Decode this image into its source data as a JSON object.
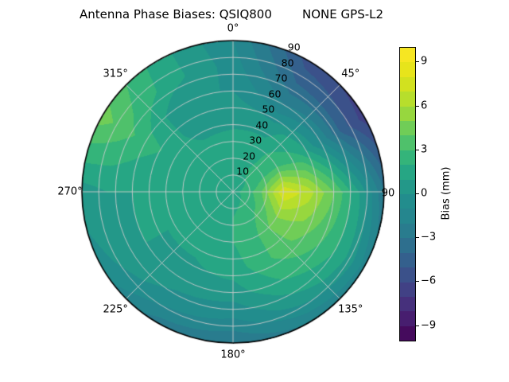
{
  "colors": {
    "background": "#ffffff",
    "grid_line": "#cccccc",
    "circle_outline": "#000000",
    "text": "#000000"
  },
  "polar_axis": {
    "theta_tick_labels": [
      {
        "label": "0°",
        "deg": 0
      },
      {
        "label": "45°",
        "deg": 45
      },
      {
        "label": "90",
        "deg": 90
      },
      {
        "label": "135°",
        "deg": 135
      },
      {
        "label": "180°",
        "deg": 180
      },
      {
        "label": "225°",
        "deg": 225
      },
      {
        "label": "270°",
        "deg": 270
      },
      {
        "label": "315°",
        "deg": 315
      }
    ],
    "r_tick_labels": [
      {
        "label": "10",
        "value": 10
      },
      {
        "label": "20",
        "value": 20
      },
      {
        "label": "30",
        "value": 30
      },
      {
        "label": "40",
        "value": 40
      },
      {
        "label": "50",
        "value": 50
      },
      {
        "label": "60",
        "value": 60
      },
      {
        "label": "70",
        "value": 70
      },
      {
        "label": "80",
        "value": 80
      },
      {
        "label": "90",
        "value": 90
      }
    ],
    "r_max": 90,
    "r_label_angle_deg": 22.5
  },
  "colorbar": {
    "label": "Bias (mm)",
    "ticks": [
      {
        "label": "9",
        "value": 9
      },
      {
        "label": "6",
        "value": 6
      },
      {
        "label": "3",
        "value": 3
      },
      {
        "label": "0",
        "value": 0
      },
      {
        "label": "−3",
        "value": -3
      },
      {
        "label": "−6",
        "value": -6
      },
      {
        "label": "−9",
        "value": -9
      }
    ]
  },
  "chart_data": {
    "type": "heatmap",
    "projection": "polar",
    "title": "Antenna Phase Biases: QSIQ800        NONE GPS-L2",
    "colormap": "viridis",
    "value_label": "Bias (mm)",
    "value_range": [
      -10,
      10
    ],
    "contour_level_step_mm": 1,
    "theta_zero_location": "N",
    "theta_direction": "clockwise",
    "azimuth_deg": [
      0,
      30,
      60,
      90,
      120,
      150,
      180,
      210,
      240,
      270,
      300,
      330
    ],
    "zenith_deg": [
      0,
      15,
      30,
      45,
      60,
      75,
      90
    ],
    "bias_mm": [
      [
        1.5,
        1.5,
        1.5,
        1.5,
        1.5,
        1.5,
        1.5,
        1.5,
        1.5,
        1.5,
        1.5,
        1.5
      ],
      [
        1.5,
        2.0,
        2.5,
        3.5,
        3.0,
        2.5,
        2.0,
        1.5,
        1.2,
        1.2,
        1.3,
        1.4
      ],
      [
        1.2,
        1.5,
        3.0,
        8.0,
        5.0,
        3.0,
        2.0,
        1.5,
        1.0,
        1.0,
        1.5,
        1.3
      ],
      [
        0.8,
        0.5,
        2.0,
        6.5,
        4.5,
        3.0,
        1.5,
        1.0,
        1.0,
        1.0,
        1.8,
        0.5
      ],
      [
        0.0,
        -2.0,
        -1.0,
        4.0,
        3.0,
        2.0,
        0.5,
        0.5,
        1.0,
        1.0,
        2.5,
        0.0
      ],
      [
        -0.5,
        -4.0,
        -4.5,
        1.0,
        1.5,
        0.5,
        -1.0,
        -0.5,
        0.5,
        1.0,
        3.5,
        1.5
      ],
      [
        -1.0,
        -5.5,
        -6.5,
        -3.0,
        -1.5,
        -2.0,
        -3.0,
        -2.5,
        -0.5,
        0.5,
        4.5,
        1.5
      ]
    ]
  }
}
